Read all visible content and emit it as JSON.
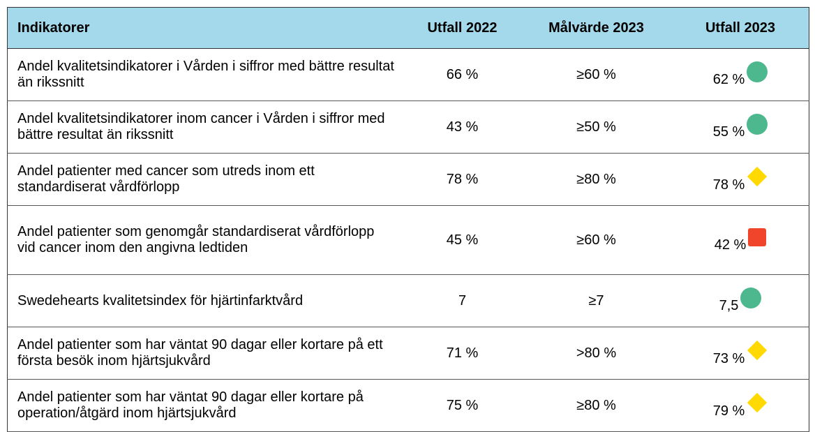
{
  "table": {
    "header": [
      "Indikatorer",
      "Utfall 2022",
      "Målvärde 2023",
      "Utfall 2023"
    ],
    "rows": [
      [
        "Andel kvalitetsindikatorer i Vården i siffror med bättre resultat än rikssnitt",
        "66 %",
        "≥60 %",
        "62 %"
      ],
      [
        "Andel kvalitetsindikatorer inom cancer i Vården i siffror med bättre resultat än rikssnitt",
        "43 %",
        "≥50 %",
        "55 %"
      ],
      [
        "Andel patienter med cancer som utreds inom ett standardiserat vårdförlopp",
        "78 %",
        "≥80 %",
        "78 %"
      ],
      [
        "Andel patienter som genomgår standardiserat vårdförlopp vid cancer inom den angivna ledtiden",
        "45 %",
        "≥60 %",
        "42 %"
      ],
      [
        "Swedehearts kvalitetsindex för hjärtinfarktvård",
        "7",
        "≥7",
        "7,5"
      ],
      [
        "Andel patienter som har väntat 90 dagar eller kortare på ett första besök inom hjärtsjukvård",
        "71 %",
        ">80 %",
        "73 %"
      ],
      [
        "Andel patienter som har väntat 90 dagar eller kortare på operation/åtgärd inom hjärtsjukvård",
        "75 %",
        "≥80 %",
        "79 %"
      ]
    ]
  }
}
